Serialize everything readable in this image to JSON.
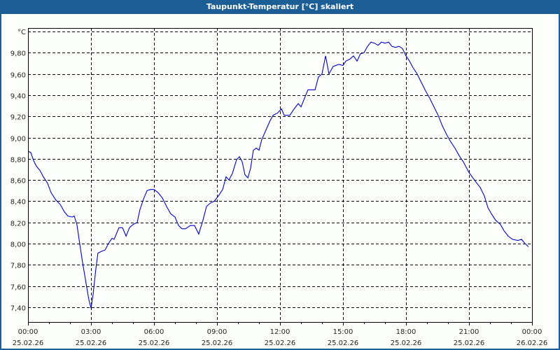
{
  "window": {
    "title": "Taupunkt-Temperatur [°C] skaliert",
    "frame_color": "#1c5f96",
    "background": "#fdfffd"
  },
  "chart_data": {
    "type": "line",
    "title": "Taupunkt-Temperatur [°C] skaliert",
    "xlabel": "",
    "ylabel": "°C",
    "unit_label": "°C",
    "ylim": [
      7.3,
      10.0
    ],
    "xlim_hours": [
      0,
      24
    ],
    "grid": true,
    "grid_style": "dashed",
    "legend": null,
    "line_color": "#0000c8",
    "y_ticks": [
      "9,80",
      "9,60",
      "9,40",
      "9,20",
      "9,00",
      "8,80",
      "8,60",
      "8,40",
      "8,20",
      "8,00",
      "7,80",
      "7,60",
      "7,40"
    ],
    "y_tick_values": [
      9.8,
      9.6,
      9.4,
      9.2,
      9.0,
      8.8,
      8.6,
      8.4,
      8.2,
      8.0,
      7.8,
      7.6,
      7.4
    ],
    "x_ticks": [
      {
        "time": "00:00",
        "date": "25.02.26"
      },
      {
        "time": "03:00",
        "date": "25.02.26"
      },
      {
        "time": "06:00",
        "date": "25.02.26"
      },
      {
        "time": "09:00",
        "date": "25.02.26"
      },
      {
        "time": "12:00",
        "date": "25.02.26"
      },
      {
        "time": "15:00",
        "date": "25.02.26"
      },
      {
        "time": "18:00",
        "date": "25.02.26"
      },
      {
        "time": "21:00",
        "date": "25.02.26"
      },
      {
        "time": "00:00",
        "date": "26.02.26"
      }
    ],
    "series": [
      {
        "name": "Taupunkt-Temperatur",
        "x_hours": [
          0.0,
          0.13,
          0.27,
          0.4,
          0.57,
          0.73,
          0.93,
          1.1,
          1.33,
          1.53,
          1.73,
          1.9,
          2.1,
          2.2,
          2.33,
          2.47,
          2.6,
          2.77,
          2.9,
          3.0,
          3.1,
          3.23,
          3.33,
          3.53,
          3.67,
          3.83,
          4.0,
          4.1,
          4.33,
          4.5,
          4.67,
          4.83,
          5.0,
          5.2,
          5.33,
          5.5,
          5.67,
          5.83,
          6.0,
          6.2,
          6.4,
          6.6,
          6.8,
          7.0,
          7.17,
          7.33,
          7.5,
          7.73,
          7.93,
          8.13,
          8.33,
          8.5,
          8.67,
          8.87,
          9.07,
          9.27,
          9.43,
          9.57,
          9.73,
          9.93,
          10.07,
          10.2,
          10.33,
          10.47,
          10.6,
          10.73,
          10.87,
          11.0,
          11.13,
          11.33,
          11.53,
          11.67,
          11.87,
          12.07,
          12.2,
          12.47,
          12.67,
          12.87,
          13.0,
          13.33,
          13.67,
          13.83,
          14.0,
          14.17,
          14.33,
          14.53,
          14.8,
          15.0,
          15.13,
          15.33,
          15.5,
          15.67,
          15.83,
          16.0,
          16.17,
          16.33,
          16.5,
          16.67,
          16.83,
          17.0,
          17.17,
          17.33,
          17.5,
          17.67,
          17.83,
          18.0,
          18.17,
          18.33,
          18.53,
          18.73,
          18.93,
          19.13,
          19.33,
          19.53,
          19.73,
          19.93,
          20.13,
          20.33,
          20.53,
          20.73,
          21.0,
          21.33,
          21.53,
          21.73,
          21.9,
          22.07,
          22.27,
          22.5,
          22.67,
          22.87,
          23.07,
          23.33,
          23.5,
          23.67,
          23.83
        ],
        "values": [
          8.87,
          8.86,
          8.78,
          8.73,
          8.69,
          8.63,
          8.57,
          8.48,
          8.41,
          8.37,
          8.3,
          8.26,
          8.25,
          8.26,
          8.18,
          7.99,
          7.82,
          7.62,
          7.47,
          7.39,
          7.52,
          7.76,
          7.91,
          7.93,
          7.94,
          8.0,
          8.05,
          8.04,
          8.15,
          8.15,
          8.07,
          8.15,
          8.18,
          8.2,
          8.32,
          8.42,
          8.5,
          8.51,
          8.51,
          8.48,
          8.43,
          8.35,
          8.28,
          8.25,
          8.17,
          8.14,
          8.14,
          8.17,
          8.17,
          8.09,
          8.22,
          8.35,
          8.38,
          8.4,
          8.45,
          8.51,
          8.63,
          8.6,
          8.66,
          8.79,
          8.82,
          8.77,
          8.65,
          8.62,
          8.71,
          8.88,
          8.9,
          8.88,
          8.98,
          9.07,
          9.16,
          9.21,
          9.23,
          9.27,
          9.21,
          9.21,
          9.27,
          9.32,
          9.29,
          9.45,
          9.45,
          9.57,
          9.6,
          9.77,
          9.6,
          9.67,
          9.69,
          9.68,
          9.72,
          9.74,
          9.77,
          9.72,
          9.79,
          9.8,
          9.86,
          9.9,
          9.89,
          9.87,
          9.9,
          9.89,
          9.9,
          9.86,
          9.85,
          9.86,
          9.84,
          9.77,
          9.72,
          9.66,
          9.6,
          9.52,
          9.44,
          9.37,
          9.29,
          9.21,
          9.11,
          9.03,
          8.96,
          8.9,
          8.83,
          8.77,
          8.67,
          8.58,
          8.53,
          8.45,
          8.34,
          8.28,
          8.22,
          8.18,
          8.12,
          8.07,
          8.04,
          8.03,
          8.04,
          8.0,
          7.97
        ]
      }
    ]
  }
}
